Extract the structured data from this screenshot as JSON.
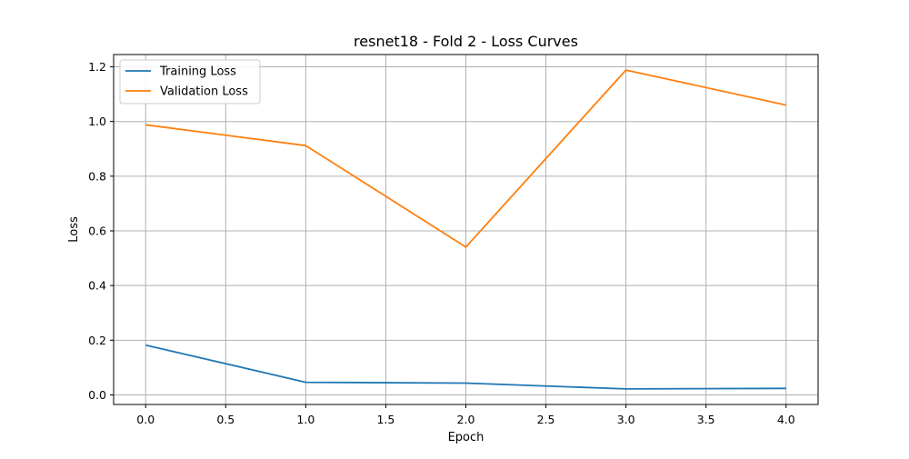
{
  "chart_data": {
    "type": "line",
    "title": "resnet18 - Fold 2 - Loss Curves",
    "xlabel": "Epoch",
    "ylabel": "Loss",
    "x": [
      0,
      1,
      2,
      3,
      4
    ],
    "xlim": [
      -0.2,
      4.2
    ],
    "ylim": [
      -0.035,
      1.245
    ],
    "xticks": [
      0.0,
      0.5,
      1.0,
      1.5,
      2.0,
      2.5,
      3.0,
      3.5,
      4.0
    ],
    "xtick_labels": [
      "0.0",
      "0.5",
      "1.0",
      "1.5",
      "2.0",
      "2.5",
      "3.0",
      "3.5",
      "4.0"
    ],
    "yticks": [
      0.0,
      0.2,
      0.4,
      0.6,
      0.8,
      1.0,
      1.2
    ],
    "ytick_labels": [
      "0.0",
      "0.2",
      "0.4",
      "0.6",
      "0.8",
      "1.0",
      "1.2"
    ],
    "grid": true,
    "legend_position": "top-left",
    "series": [
      {
        "name": "Training Loss",
        "color": "#1f77b4",
        "values": [
          0.182,
          0.046,
          0.043,
          0.022,
          0.024
        ]
      },
      {
        "name": "Validation Loss",
        "color": "#ff7f0e",
        "values": [
          0.988,
          0.912,
          0.541,
          1.188,
          1.06
        ]
      }
    ]
  }
}
